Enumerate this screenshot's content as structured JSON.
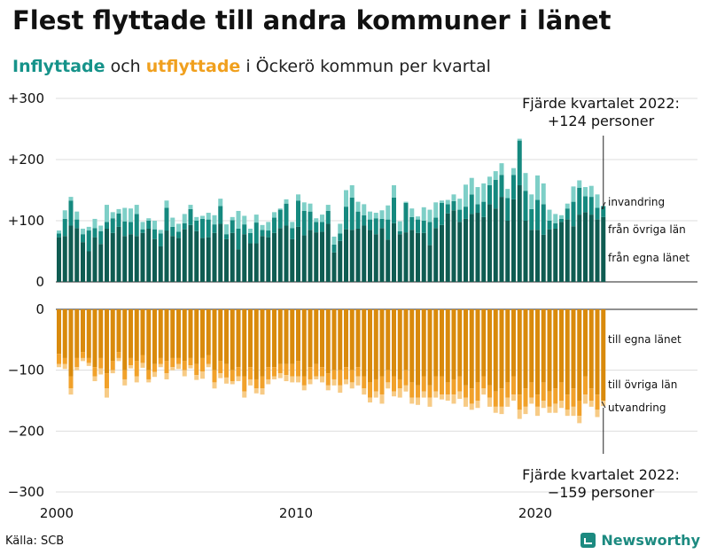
{
  "title": "Flest flyttade till andra kommuner i länet",
  "subtitle": {
    "in_word": "Inflyttade",
    "middle": " och ",
    "out_word": "utflyttade",
    "rest": " i Öckerö kommun per kvartal"
  },
  "source": "Källa: SCB",
  "brand": "Newsworthy",
  "colors": {
    "in_same_county": "#0f5c52",
    "in_other_county": "#15897f",
    "in_immigration": "#7ecfc7",
    "out_same_county": "#d98a0c",
    "out_other_county": "#f1a12a",
    "out_emigration": "#f7cb86",
    "gridline": "#dddddd"
  },
  "annotations": {
    "top_line1": "Fjärde kvartalet 2022:",
    "top_line2": "+124 personer",
    "bottom_line1": "Fjärde kvartalet 2022:",
    "bottom_line2": "−159 personer"
  },
  "chart_data": {
    "type": "bar",
    "stacked": true,
    "diverging": true,
    "frequency": "quarterly",
    "start": "2000 Q1",
    "end": "2022 Q4",
    "x_ticks": [
      "2000",
      "2010",
      "2020"
    ],
    "y_ticks": [
      "+300",
      "+200",
      "+100",
      "0",
      "0",
      "−100",
      "−200",
      "−300"
    ],
    "ylim_in": [
      0,
      300
    ],
    "ylim_out": [
      -300,
      0
    ],
    "grid": true,
    "series_in": [
      {
        "name": "från egna länet",
        "color": "#0f5c52",
        "values": [
          73,
          75,
          92,
          88,
          65,
          50,
          73,
          62,
          87,
          80,
          90,
          75,
          78,
          75,
          80,
          87,
          70,
          58,
          84,
          75,
          72,
          86,
          93,
          83,
          72,
          73,
          80,
          95,
          70,
          80,
          53,
          78,
          63,
          63,
          75,
          73,
          80,
          88,
          92,
          70,
          90,
          76,
          85,
          81,
          82,
          95,
          48,
          67,
          86,
          85,
          87,
          92,
          85,
          78,
          88,
          69,
          96,
          78,
          81,
          85,
          80,
          80,
          60,
          88,
          93,
          112,
          117,
          98,
          103,
          111,
          113,
          106,
          127,
          120,
          139,
          100,
          135,
          158,
          100,
          85,
          85,
          77,
          86,
          87,
          98,
          102,
          91,
          110,
          114,
          110,
          102,
          106
        ]
      },
      {
        "name": "från övriga län",
        "color": "#15897f",
        "values": [
          6,
          28,
          41,
          14,
          13,
          34,
          15,
          21,
          11,
          24,
          22,
          24,
          20,
          36,
          6,
          13,
          16,
          21,
          37,
          15,
          10,
          10,
          26,
          17,
          31,
          29,
          14,
          29,
          8,
          21,
          34,
          16,
          17,
          34,
          10,
          11,
          25,
          30,
          36,
          18,
          43,
          40,
          30,
          17,
          16,
          21,
          13,
          12,
          37,
          53,
          28,
          17,
          17,
          26,
          15,
          33,
          42,
          5,
          48,
          21,
          22,
          20,
          38,
          17,
          36,
          15,
          15,
          20,
          20,
          32,
          14,
          25,
          31,
          47,
          36,
          37,
          40,
          73,
          49,
          34,
          49,
          50,
          14,
          9,
          5,
          18,
          40,
          44,
          26,
          29,
          19,
          18
        ]
      },
      {
        "name": "invandring",
        "color": "#7ecfc7",
        "values": [
          5,
          14,
          6,
          13,
          9,
          6,
          15,
          9,
          28,
          10,
          7,
          22,
          22,
          15,
          12,
          4,
          14,
          6,
          12,
          15,
          13,
          15,
          7,
          6,
          5,
          11,
          15,
          12,
          16,
          5,
          29,
          14,
          7,
          13,
          8,
          14,
          9,
          2,
          7,
          10,
          10,
          14,
          13,
          6,
          12,
          10,
          13,
          16,
          27,
          20,
          16,
          18,
          13,
          9,
          14,
          23,
          20,
          16,
          2,
          14,
          5,
          22,
          20,
          25,
          4,
          7,
          11,
          18,
          36,
          27,
          28,
          30,
          14,
          14,
          19,
          15,
          11,
          3,
          29,
          24,
          40,
          34,
          18,
          15,
          6,
          8,
          25,
          12,
          15,
          18,
          22,
          0
        ]
      }
    ],
    "series_out": [
      {
        "name": "till egna länet",
        "color": "#d98a0c",
        "values": [
          -73,
          -80,
          -110,
          -80,
          -70,
          -80,
          -95,
          -80,
          -105,
          -85,
          -70,
          -100,
          -80,
          -85,
          -75,
          -100,
          -90,
          -80,
          -85,
          -80,
          -80,
          -85,
          -80,
          -90,
          -80,
          -75,
          -100,
          -85,
          -90,
          -100,
          -95,
          -110,
          -95,
          -115,
          -110,
          -95,
          -95,
          -90,
          -90,
          -90,
          -85,
          -110,
          -95,
          -90,
          -95,
          -105,
          -100,
          -100,
          -95,
          -100,
          -95,
          -110,
          -120,
          -115,
          -110,
          -100,
          -110,
          -115,
          -100,
          -120,
          -125,
          -110,
          -125,
          -110,
          -110,
          -120,
          -115,
          -110,
          -125,
          -130,
          -120,
          -110,
          -125,
          -135,
          -130,
          -120,
          -110,
          -140,
          -130,
          -120,
          -140,
          -120,
          -135,
          -130,
          -120,
          -140,
          -130,
          -150,
          -110,
          -130,
          -140,
          -150
        ]
      },
      {
        "name": "till övriga län",
        "color": "#f1a12a",
        "values": [
          -17,
          -10,
          -20,
          -15,
          -10,
          -8,
          -15,
          -17,
          -25,
          -15,
          -10,
          -15,
          -12,
          -25,
          -13,
          -15,
          -13,
          -10,
          -20,
          -15,
          -10,
          -15,
          -12,
          -18,
          -22,
          -15,
          -20,
          -20,
          -22,
          -18,
          -15,
          -25,
          -20,
          -15,
          -20,
          -20,
          -15,
          -15,
          -18,
          -20,
          -25,
          -15,
          -20,
          -20,
          -15,
          -20,
          -15,
          -25,
          -20,
          -20,
          -15,
          -20,
          -25,
          -20,
          -30,
          -20,
          -25,
          -15,
          -25,
          -25,
          -20,
          -25,
          -20,
          -25,
          -30,
          -20,
          -25,
          -25,
          -20,
          -25,
          -30,
          -20,
          -20,
          -25,
          -30,
          -25,
          -30,
          -25,
          -30,
          -25,
          -20,
          -30,
          -25,
          -25,
          -30,
          -25,
          -30,
          -25,
          -30,
          -20,
          -25,
          0
        ]
      },
      {
        "name": "utvandring",
        "color": "#f7cb86",
        "values": [
          -5,
          -8,
          -10,
          -5,
          -5,
          -5,
          -8,
          -10,
          -15,
          -5,
          -5,
          -10,
          -5,
          -10,
          -8,
          -5,
          -8,
          -5,
          -10,
          -5,
          -8,
          -10,
          -5,
          -8,
          -12,
          -5,
          -10,
          -8,
          -10,
          -5,
          -8,
          -10,
          -10,
          -8,
          -10,
          -8,
          -5,
          -8,
          -10,
          -10,
          -10,
          -8,
          -8,
          -5,
          -10,
          -8,
          -10,
          -12,
          -8,
          -10,
          -15,
          -10,
          -8,
          -10,
          -15,
          -10,
          -8,
          -15,
          -10,
          -10,
          -12,
          -10,
          -15,
          -10,
          -8,
          -10,
          -15,
          -12,
          -15,
          -10,
          -12,
          -10,
          -15,
          -10,
          -12,
          -15,
          -10,
          -15,
          -12,
          -10,
          -15,
          -12,
          -10,
          -15,
          -12,
          -10,
          -15,
          -12,
          -15,
          -10,
          -12,
          -9
        ]
      }
    ],
    "segment_labels_in": [
      "invandring",
      "från övriga län",
      "från egna länet"
    ],
    "segment_labels_out": [
      "till egna länet",
      "till övriga län",
      "utvandring"
    ]
  }
}
